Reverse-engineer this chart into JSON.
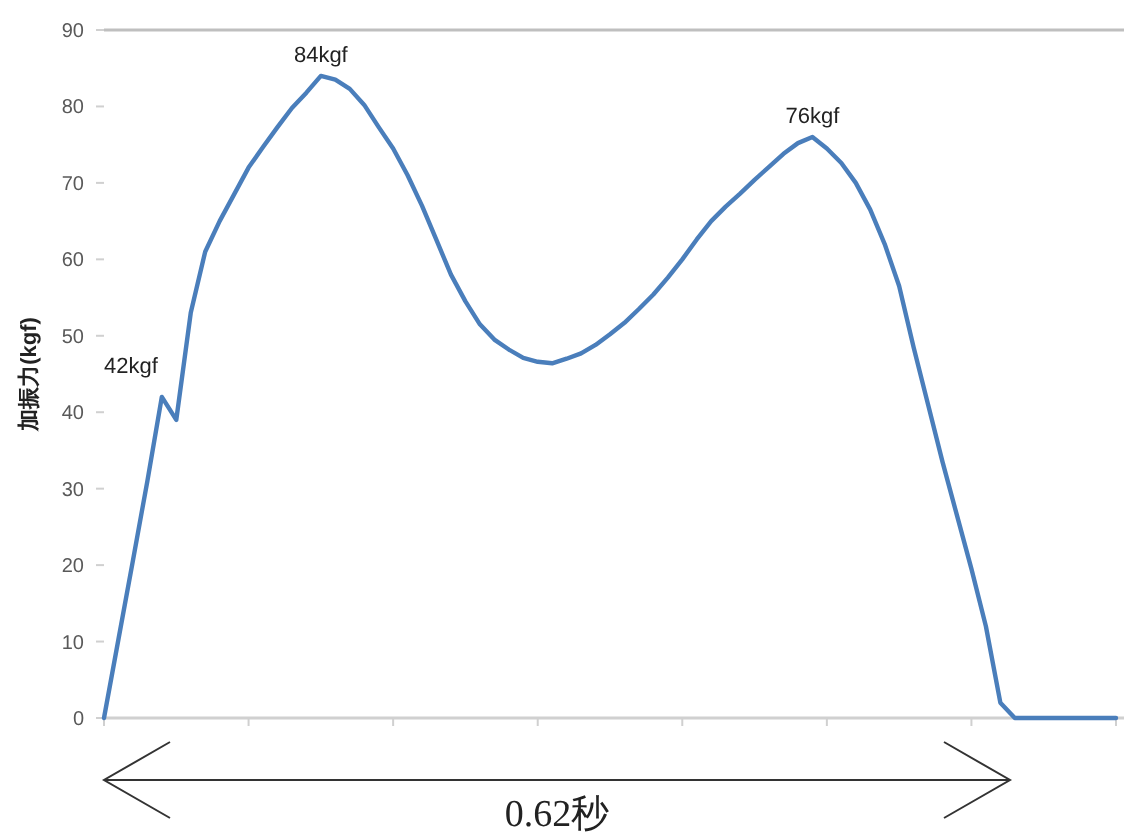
{
  "chart_data": {
    "type": "line",
    "ylabel": "加振力(kgf)",
    "categories": [
      null,
      null,
      null,
      null,
      null,
      null,
      null,
      null,
      null,
      null,
      null,
      null,
      null,
      null,
      null,
      null,
      null,
      null,
      null,
      null,
      null,
      null,
      null,
      null,
      null,
      null,
      null,
      null,
      null,
      null,
      null,
      null,
      null,
      null,
      null,
      null,
      null,
      null,
      null,
      null,
      null,
      null,
      null,
      null,
      null,
      null,
      null,
      null,
      null,
      null,
      null,
      null,
      null,
      null,
      null,
      null,
      null,
      null,
      null,
      null,
      null,
      null,
      null,
      null,
      null,
      null,
      null,
      null,
      null,
      null,
      null
    ],
    "series": [
      {
        "color": "#4a7ebb",
        "values": [
          0,
          10.3,
          20.6,
          31,
          42,
          39,
          53,
          61,
          65,
          68.5,
          72,
          74.7,
          77.3,
          79.8,
          81.8,
          84,
          83.5,
          82.3,
          80.2,
          77.3,
          74.5,
          71,
          67,
          62.5,
          58,
          54.5,
          51.5,
          49.5,
          48.2,
          47.1,
          46.6,
          46.4,
          47,
          47.7,
          48.8,
          50.2,
          51.7,
          53.5,
          55.4,
          57.6,
          60,
          62.6,
          65,
          66.9,
          68.6,
          70.4,
          72.1,
          73.8,
          75.2,
          76,
          74.5,
          72.6,
          70,
          66.5,
          62,
          56.5,
          48.5,
          41,
          33.5,
          26.5,
          19.5,
          12,
          2,
          0,
          0,
          0,
          0,
          0,
          0,
          0,
          0
        ],
        "value_labels": [
          null,
          null,
          null,
          null,
          "42kgf",
          null,
          null,
          null,
          null,
          null,
          null,
          null,
          null,
          null,
          null,
          "84kgf",
          null,
          null,
          null,
          null,
          null,
          null,
          null,
          null,
          null,
          null,
          null,
          null,
          null,
          null,
          null,
          null,
          null,
          null,
          null,
          null,
          null,
          null,
          null,
          null,
          null,
          null,
          null,
          null,
          null,
          null,
          null,
          null,
          null,
          "76kgf",
          null,
          null,
          null,
          null,
          null,
          null,
          null,
          null,
          null,
          null,
          null,
          null,
          null,
          null,
          null,
          null,
          null,
          null,
          null,
          null,
          null
        ]
      }
    ],
    "ylim": [
      0,
      90
    ],
    "yticks": [
      0,
      10,
      20,
      30,
      40,
      50,
      60,
      70,
      80,
      90
    ],
    "annotations": [
      "0.62秒"
    ]
  }
}
